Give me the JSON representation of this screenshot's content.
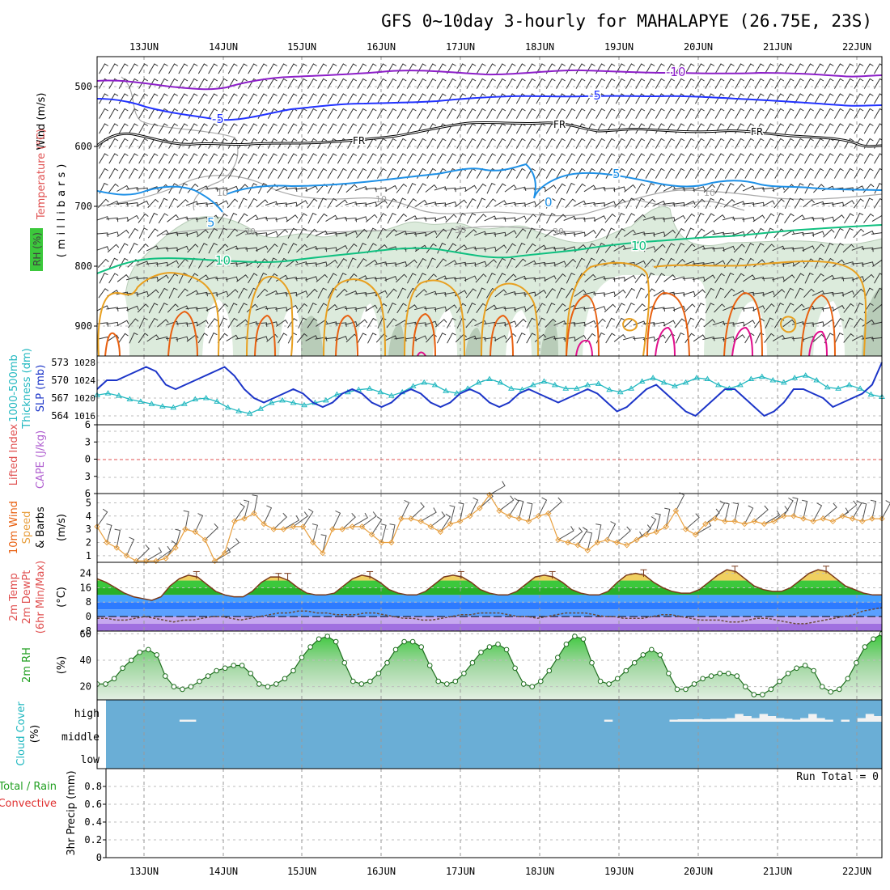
{
  "title": "GFS 0~10day 3-hourly for MAHALAPYE (26.75E, 23S)",
  "dates": [
    "13JUN",
    "14JUN",
    "15JUN",
    "16JUN",
    "17JUN",
    "18JUN",
    "19JUN",
    "20JUN",
    "21JUN",
    "22JUN"
  ],
  "run_total": "Run Total = 0",
  "colors": {
    "purple": "#8c1fc8",
    "blue": "#2233ff",
    "lightblue": "#1e90e6",
    "green": "#10c080",
    "orange": "#e8a020",
    "red_orange": "#e86010",
    "magenta": "#e0108c",
    "slp": "#1c35c8",
    "thickness": "#22b8c0",
    "cloud": "#6aaed6",
    "wind10m": "#e8a040"
  },
  "panels": {
    "upper_air": {
      "labels": [
        "Wind (m/s)",
        "Temperature (°C)",
        "RH (%)",
        "(millibars)"
      ],
      "yticks": [
        "500",
        "600",
        "700",
        "800",
        "900"
      ],
      "isotherm_labels": [
        "-10",
        "-5",
        "-5",
        "FR",
        "FR",
        "FR",
        "5",
        "5",
        "0",
        "10",
        "10"
      ],
      "rh_labels": [
        "10",
        "10",
        "10",
        "30",
        "30",
        "30"
      ]
    },
    "slp_thickness": {
      "labels": [
        "1000-500mb",
        "Thickness (dm)",
        "SLP (mb)"
      ],
      "thickness_ticks": [
        "573",
        "570",
        "567",
        "564"
      ],
      "slp_ticks": [
        "1028",
        "1024",
        "1020",
        "1016"
      ]
    },
    "li_cape": {
      "labels": [
        "Lifted Index",
        "CAPE (J/kg)"
      ],
      "yticks": [
        "6",
        "3",
        "0",
        "3",
        "6"
      ]
    },
    "wind10m": {
      "labels": [
        "10m Wind",
        "Speed",
        "& Barbs",
        "(m/s)"
      ],
      "yticks": [
        "5",
        "4",
        "3",
        "2",
        "1"
      ]
    },
    "temp2m": {
      "labels": [
        "2m Temp",
        "2m DewPt",
        "(6hr Min/Max)",
        "(°C)"
      ],
      "yticks": [
        "24",
        "16",
        "8",
        "0",
        "-8"
      ]
    },
    "rh2m": {
      "labels": [
        "2m RH",
        "(%)"
      ],
      "yticks": [
        "60",
        "40",
        "20"
      ]
    },
    "cloud": {
      "labels": [
        "Cloud Cover",
        "(%)"
      ],
      "yticks": [
        "high",
        "middle",
        "low"
      ]
    },
    "precip": {
      "labels": [
        "Total / Rain",
        "Convective",
        "3hr Precip (mm)"
      ],
      "yticks": [
        "0.8",
        "0.6",
        "0.4",
        "0.2",
        "0"
      ]
    }
  },
  "chart_data": [
    {
      "type": "line",
      "title": "SLP and 1000-500mb Thickness",
      "x_unit": "3-hourly steps from 12JUN 12Z",
      "series": [
        {
          "name": "SLP (mb)",
          "values": [
            1022,
            1024,
            1024,
            1025,
            1026,
            1027,
            1026,
            1023,
            1022,
            1023,
            1024,
            1025,
            1026,
            1027,
            1025,
            1022,
            1020,
            1019,
            1020,
            1021,
            1022,
            1021,
            1019,
            1018,
            1019,
            1021,
            1022,
            1021,
            1019,
            1018,
            1019,
            1021,
            1022,
            1021,
            1019,
            1018,
            1019,
            1021,
            1022,
            1021,
            1019,
            1018,
            1019,
            1021,
            1022,
            1021,
            1020,
            1019,
            1020,
            1021,
            1022,
            1021,
            1019,
            1017,
            1018,
            1020,
            1022,
            1023,
            1021,
            1019,
            1017,
            1016,
            1018,
            1020,
            1022,
            1022,
            1020,
            1018,
            1016,
            1017,
            1019,
            1022,
            1022,
            1021,
            1020,
            1018,
            1019,
            1020,
            1021,
            1023,
            1028
          ]
        },
        {
          "name": "1000-500mb Thickness (dm)",
          "values": [
            567.5,
            567.8,
            567.4,
            566.8,
            566.4,
            566.0,
            565.6,
            565.4,
            566.0,
            566.8,
            567.0,
            566.4,
            565.4,
            564.8,
            564.4,
            565.2,
            566.2,
            566.6,
            566.2,
            565.8,
            566.2,
            566.6,
            567.6,
            568.0,
            568.4,
            568.6,
            568.0,
            567.4,
            568.0,
            569.0,
            569.6,
            569.2,
            568.2,
            567.8,
            568.6,
            569.6,
            570.2,
            569.6,
            568.6,
            568.4,
            569.2,
            569.8,
            569.2,
            568.6,
            568.6,
            569.2,
            569.4,
            568.4,
            568.0,
            568.6,
            569.8,
            570.4,
            569.6,
            569.0,
            569.6,
            570.4,
            570.2,
            569.2,
            568.6,
            569.2,
            570.2,
            570.6,
            570.0,
            569.6,
            570.4,
            570.8,
            570.0,
            568.8,
            568.6,
            569.2,
            568.6,
            567.6,
            567.2
          ]
        }
      ],
      "ylim_slp": [
        1014,
        1028
      ],
      "ylim_thickness": [
        563.5,
        573.5
      ]
    },
    {
      "type": "line",
      "title": "10m Wind Speed",
      "series": [
        {
          "name": "10m Wind Speed (m/s)",
          "values": [
            3.2,
            2.0,
            1.6,
            1.0,
            0.6,
            0.6,
            0.6,
            0.8,
            1.6,
            3.0,
            2.8,
            2.2,
            0.6,
            1.2,
            3.6,
            3.8,
            4.2,
            3.4,
            3.0,
            3.0,
            3.2,
            3.2,
            2.0,
            1.2,
            3.0,
            3.0,
            3.2,
            3.2,
            2.6,
            2.0,
            2.0,
            3.8,
            3.8,
            3.6,
            3.2,
            2.8,
            3.4,
            3.6,
            4.0,
            4.6,
            5.6,
            4.4,
            4.0,
            3.8,
            3.6,
            4.0,
            4.2,
            2.2,
            2.0,
            1.8,
            1.4,
            2.0,
            2.2,
            2.0,
            1.8,
            2.2,
            2.6,
            2.8,
            3.2,
            4.4,
            3.0,
            2.6,
            3.4,
            3.8,
            3.6,
            3.6,
            3.4,
            3.6,
            3.4,
            3.6,
            4.0,
            4.0,
            3.8,
            3.6,
            3.8,
            3.6,
            4.0,
            3.8,
            3.6,
            3.8,
            3.8
          ]
        }
      ],
      "ylim": [
        0.5,
        5.5
      ]
    },
    {
      "type": "area",
      "title": "2m Temp / DewPt",
      "series": [
        {
          "name": "2m Temp (°C)",
          "values": [
            21,
            19,
            16,
            13,
            11,
            10,
            9,
            11,
            17,
            21,
            23,
            22,
            18,
            14,
            12,
            11,
            11,
            14,
            19,
            22,
            22,
            20,
            16,
            13,
            12,
            12,
            13,
            17,
            21,
            23,
            22,
            19,
            15,
            13,
            12,
            12,
            14,
            18,
            22,
            23,
            22,
            19,
            15,
            13,
            12,
            12,
            14,
            18,
            22,
            23,
            22,
            19,
            15,
            13,
            12,
            12,
            14,
            19,
            23,
            24,
            23,
            19,
            16,
            14,
            13,
            13,
            15,
            19,
            23,
            26,
            25,
            21,
            17,
            15,
            14,
            14,
            16,
            20,
            24,
            26,
            25,
            21,
            17,
            15,
            13,
            12,
            12
          ]
        },
        {
          "name": "2m DewPt (°C)",
          "values": [
            -1,
            -1,
            -2,
            -2,
            -1,
            0,
            -1,
            -2,
            -3,
            -2,
            -2,
            -1,
            0,
            0,
            -1,
            -2,
            -1,
            0,
            1,
            2,
            2,
            3,
            3,
            2,
            2,
            1,
            1,
            1,
            2,
            2,
            1,
            0,
            -1,
            -1,
            -2,
            -2,
            -1,
            0,
            1,
            1,
            2,
            2,
            2,
            1,
            0,
            0,
            -1,
            0,
            1,
            2,
            2,
            2,
            1,
            0,
            0,
            -1,
            -1,
            -1,
            0,
            1,
            1,
            0,
            -1,
            -2,
            -2,
            -2,
            -3,
            -3,
            -2,
            -1,
            -1,
            -2,
            -3,
            -4,
            -4,
            -3,
            -2,
            -1,
            0,
            1,
            3,
            4,
            5
          ]
        }
      ],
      "ylim": [
        -8,
        28
      ]
    },
    {
      "type": "area",
      "title": "2m RH",
      "series": [
        {
          "name": "2m RH (%)",
          "values": [
            22,
            22,
            26,
            34,
            40,
            46,
            48,
            44,
            28,
            20,
            18,
            20,
            24,
            28,
            32,
            34,
            36,
            36,
            30,
            22,
            20,
            22,
            26,
            32,
            42,
            50,
            56,
            58,
            54,
            38,
            24,
            22,
            24,
            30,
            38,
            48,
            54,
            54,
            50,
            36,
            24,
            22,
            24,
            30,
            38,
            46,
            50,
            52,
            48,
            34,
            22,
            20,
            24,
            32,
            42,
            52,
            58,
            56,
            38,
            24,
            22,
            26,
            32,
            38,
            44,
            48,
            44,
            30,
            18,
            18,
            22,
            26,
            28,
            30,
            30,
            28,
            20,
            14,
            14,
            18,
            24,
            30,
            34,
            36,
            32,
            20,
            16,
            18,
            26,
            38,
            50,
            56,
            60
          ]
        }
      ],
      "ylim": [
        10,
        62
      ]
    },
    {
      "type": "bar",
      "title": "Cloud Cover (high layer, %)",
      "series": [
        {
          "name": "high",
          "values": [
            0,
            0,
            0,
            0,
            0,
            0,
            0,
            0,
            0,
            2,
            2,
            0,
            0,
            0,
            0,
            0,
            0,
            0,
            0,
            0,
            0,
            0,
            0,
            0,
            0,
            0,
            0,
            0,
            0,
            0,
            0,
            0,
            0,
            0,
            0,
            0,
            0,
            0,
            0,
            0,
            0,
            0,
            0,
            0,
            0,
            0,
            0,
            0,
            0,
            0,
            0,
            0,
            0,
            0,
            0,
            0,
            0,
            0,
            0,
            0,
            0,
            2,
            0,
            0,
            0,
            0,
            0,
            0,
            0,
            2,
            4,
            4,
            6,
            4,
            6,
            6,
            10,
            30,
            20,
            10,
            30,
            20,
            10,
            6,
            2,
            10,
            30,
            10,
            2,
            0,
            2,
            0,
            10,
            30,
            20
          ]
        }
      ],
      "ylim": [
        0,
        100
      ]
    },
    {
      "type": "bar",
      "title": "3hr Precip",
      "series": [
        {
          "name": "3hr Precip (mm)",
          "values": []
        }
      ],
      "ylim": [
        0,
        1
      ]
    }
  ]
}
